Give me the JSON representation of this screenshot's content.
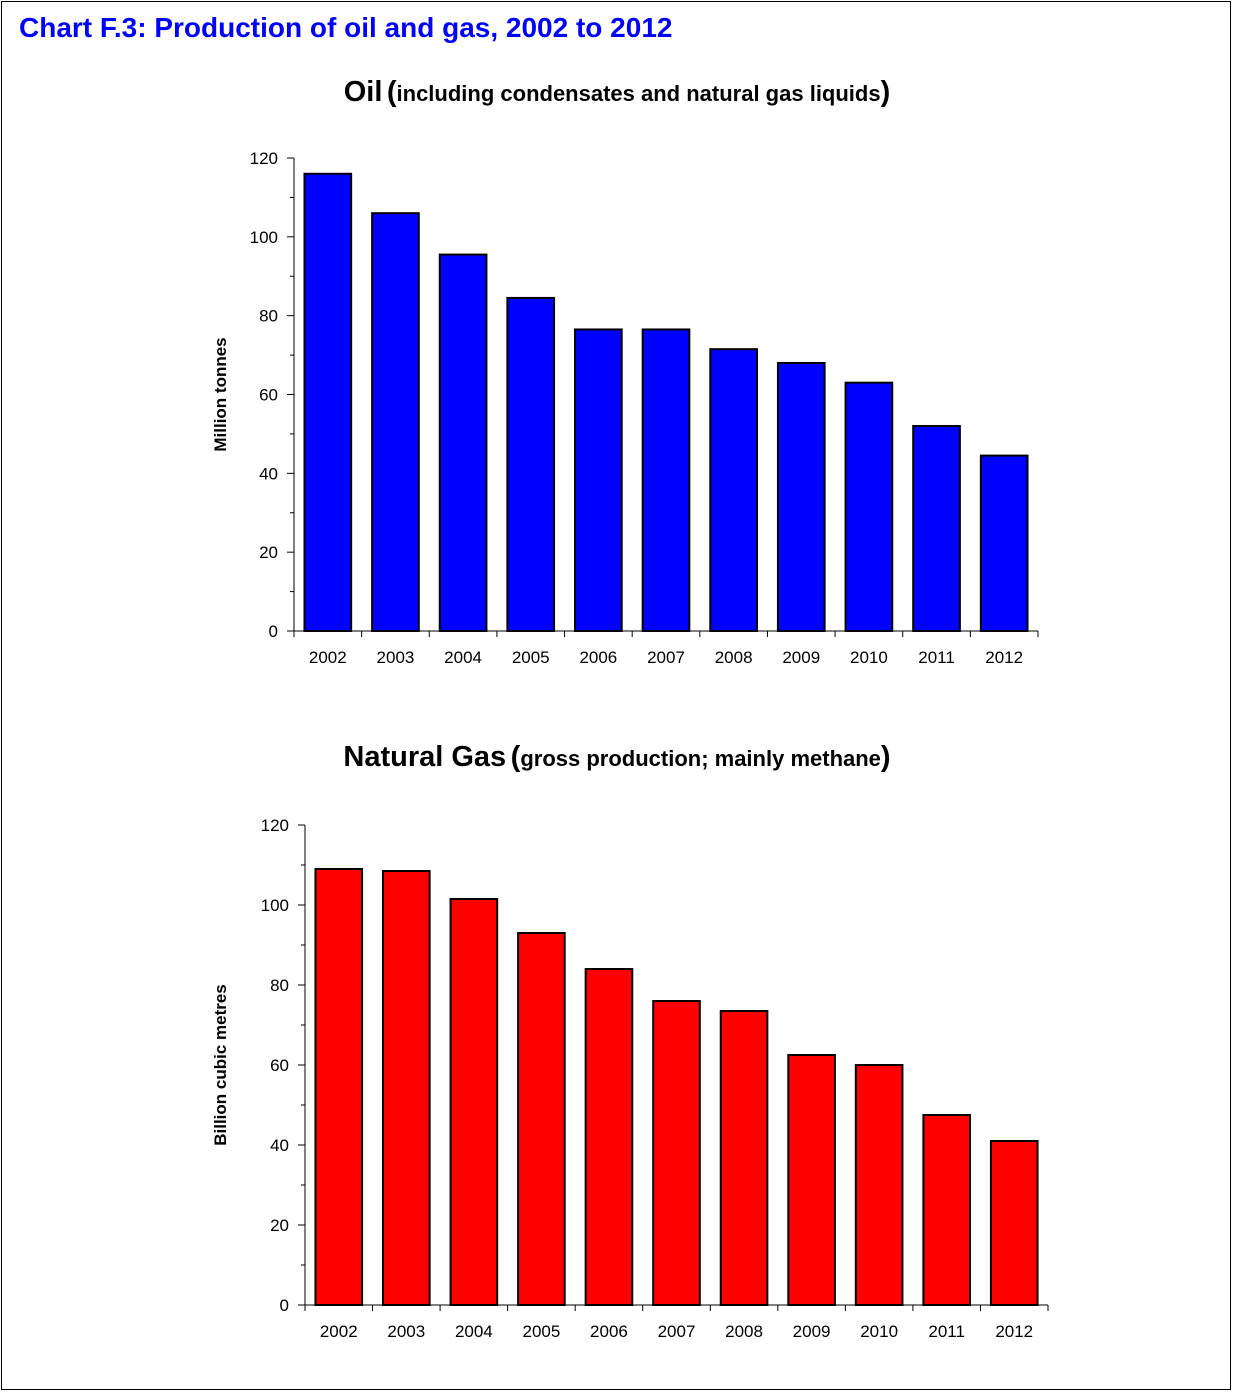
{
  "page_title": "Chart F.3:  Production of oil and gas, 2002 to 2012",
  "colors": {
    "title": "#0000ff",
    "oil_bars": "#0000ff",
    "gas_bars": "#ff0000",
    "bar_stroke": "#000000"
  },
  "chart_data": [
    {
      "type": "bar",
      "title": "Oil",
      "subtitle": "including condensates and natural gas liquids",
      "xlabel": "",
      "ylabel": "Million tonnes",
      "categories": [
        "2002",
        "2003",
        "2004",
        "2005",
        "2006",
        "2007",
        "2008",
        "2009",
        "2010",
        "2011",
        "2012"
      ],
      "values": [
        116,
        106,
        95.5,
        84.5,
        76.5,
        76.5,
        71.5,
        68,
        63,
        52,
        44.5
      ],
      "ylim": [
        0,
        120
      ],
      "yticks": [
        0,
        20,
        40,
        60,
        80,
        100,
        120
      ],
      "grid": false,
      "legend": "none"
    },
    {
      "type": "bar",
      "title": "Natural Gas",
      "subtitle": "gross production; mainly methane",
      "xlabel": "",
      "ylabel": "Billion cubic metres",
      "categories": [
        "2002",
        "2003",
        "2004",
        "2005",
        "2006",
        "2007",
        "2008",
        "2009",
        "2010",
        "2011",
        "2012"
      ],
      "values": [
        109,
        108.5,
        101.5,
        93,
        84,
        76,
        73.5,
        62.5,
        60,
        47.5,
        41
      ],
      "ylim": [
        0,
        120
      ],
      "yticks": [
        0,
        20,
        40,
        60,
        80,
        100,
        120
      ],
      "grid": false,
      "legend": "none"
    }
  ]
}
